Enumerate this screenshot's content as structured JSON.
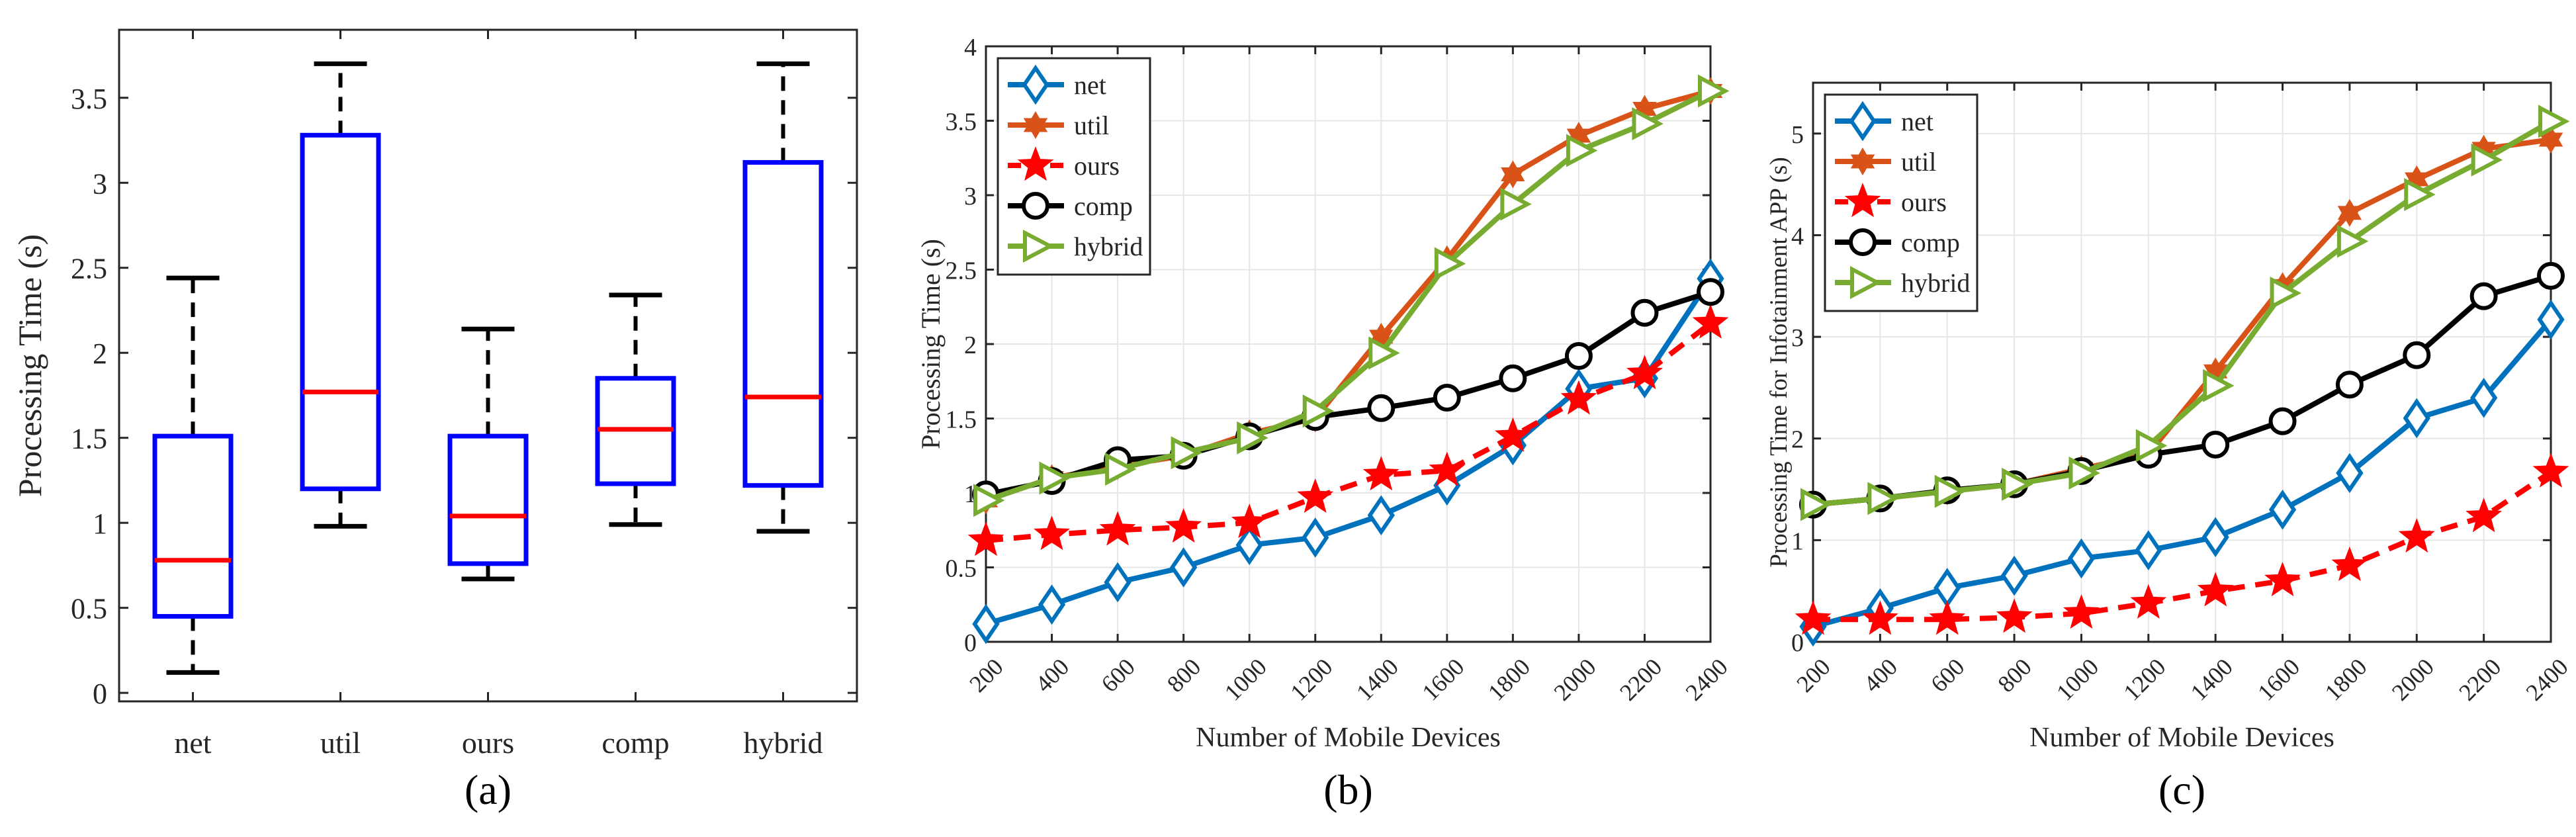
{
  "chart_data": [
    {
      "type": "box",
      "caption": "(a)",
      "ylabel": "Processing Time (s)",
      "xlabel": "",
      "ylim": [
        -0.05,
        3.9
      ],
      "yticks": [
        0,
        0.5,
        1,
        1.5,
        2,
        2.5,
        3,
        3.5
      ],
      "ytick_labels": [
        "0",
        "0.5",
        "1",
        "1.5",
        "2",
        "2.5",
        "3",
        "3.5"
      ],
      "grid": false,
      "categories": [
        "net",
        "util",
        "ours",
        "comp",
        "hybrid"
      ],
      "boxes": [
        {
          "min": 0.12,
          "q1": 0.45,
          "median": 0.78,
          "q3": 1.51,
          "max": 2.44
        },
        {
          "min": 0.98,
          "q1": 1.2,
          "median": 1.77,
          "q3": 3.28,
          "max": 3.7
        },
        {
          "min": 0.67,
          "q1": 0.76,
          "median": 1.04,
          "q3": 1.51,
          "max": 2.14
        },
        {
          "min": 0.99,
          "q1": 1.23,
          "median": 1.55,
          "q3": 1.85,
          "max": 2.34
        },
        {
          "min": 0.95,
          "q1": 1.22,
          "median": 1.74,
          "q3": 3.12,
          "max": 3.7
        }
      ],
      "colors": {
        "box": "#0000ff",
        "median": "#ff0000",
        "whisker": "#000000"
      }
    },
    {
      "type": "line",
      "caption": "(b)",
      "ylabel": "Processing Time (s)",
      "xlabel": "Number of Mobile Devices",
      "ylim": [
        0,
        4
      ],
      "yticks": [
        0,
        0.5,
        1,
        1.5,
        2,
        2.5,
        3,
        3.5,
        4
      ],
      "ytick_labels": [
        "0",
        "0.5",
        "1",
        "1.5",
        "2",
        "2.5",
        "3",
        "3.5",
        "4"
      ],
      "grid": true,
      "legend": "top-left",
      "x": [
        200,
        400,
        600,
        800,
        1000,
        1200,
        1400,
        1600,
        1800,
        2000,
        2200,
        2400
      ],
      "series": [
        {
          "name": "net",
          "color": "#0072bd",
          "marker": "diamond",
          "dash": "solid",
          "values": [
            0.12,
            0.25,
            0.4,
            0.5,
            0.65,
            0.7,
            0.85,
            1.05,
            1.32,
            1.7,
            1.77,
            2.44
          ]
        },
        {
          "name": "util",
          "color": "#d95319",
          "marker": "hexagram",
          "dash": "solid",
          "values": [
            0.95,
            1.1,
            1.18,
            1.25,
            1.4,
            1.5,
            2.05,
            2.57,
            3.14,
            3.4,
            3.58,
            3.7
          ]
        },
        {
          "name": "ours",
          "color": "#ff0000",
          "marker": "pentagram",
          "dash": "dashed",
          "values": [
            0.68,
            0.72,
            0.75,
            0.77,
            0.8,
            0.97,
            1.12,
            1.15,
            1.38,
            1.63,
            1.8,
            2.14
          ]
        },
        {
          "name": "comp",
          "color": "#000000",
          "marker": "circle",
          "dash": "solid",
          "values": [
            0.99,
            1.08,
            1.22,
            1.25,
            1.38,
            1.51,
            1.57,
            1.64,
            1.77,
            1.92,
            2.21,
            2.35
          ]
        },
        {
          "name": "hybrid",
          "color": "#77ac30",
          "marker": "triangle-right",
          "dash": "solid",
          "values": [
            0.95,
            1.1,
            1.16,
            1.27,
            1.37,
            1.55,
            1.94,
            2.54,
            2.94,
            3.3,
            3.48,
            3.7
          ]
        }
      ]
    },
    {
      "type": "line",
      "caption": "(c)",
      "ylabel": "Processing Time for Infotainment APP (s)",
      "xlabel": "Number of Mobile Devices",
      "ylim": [
        0,
        5.5
      ],
      "yticks": [
        0,
        1,
        2,
        3,
        4,
        5
      ],
      "ytick_labels": [
        "0",
        "1",
        "2",
        "3",
        "4",
        "5"
      ],
      "grid": true,
      "legend": "top-left",
      "x": [
        200,
        400,
        600,
        800,
        1000,
        1200,
        1400,
        1600,
        1800,
        2000,
        2200,
        2400
      ],
      "series": [
        {
          "name": "net",
          "color": "#0072bd",
          "marker": "diamond",
          "dash": "solid",
          "values": [
            0.15,
            0.33,
            0.53,
            0.65,
            0.82,
            0.9,
            1.03,
            1.3,
            1.66,
            2.2,
            2.4,
            3.17
          ]
        },
        {
          "name": "util",
          "color": "#d95319",
          "marker": "hexagram",
          "dash": "solid",
          "values": [
            1.35,
            1.41,
            1.48,
            1.55,
            1.7,
            1.85,
            2.66,
            3.5,
            4.22,
            4.55,
            4.85,
            4.94
          ]
        },
        {
          "name": "ours",
          "color": "#ff0000",
          "marker": "pentagram",
          "dash": "dashed",
          "values": [
            0.22,
            0.22,
            0.22,
            0.24,
            0.28,
            0.38,
            0.5,
            0.6,
            0.75,
            1.03,
            1.23,
            1.67
          ]
        },
        {
          "name": "comp",
          "color": "#000000",
          "marker": "circle",
          "dash": "solid",
          "values": [
            1.35,
            1.41,
            1.49,
            1.55,
            1.68,
            1.84,
            1.94,
            2.17,
            2.53,
            2.82,
            3.4,
            3.6
          ]
        },
        {
          "name": "hybrid",
          "color": "#77ac30",
          "marker": "triangle-right",
          "dash": "solid",
          "values": [
            1.35,
            1.41,
            1.48,
            1.55,
            1.66,
            1.93,
            2.52,
            3.43,
            3.94,
            4.4,
            4.74,
            5.12
          ]
        }
      ]
    }
  ]
}
